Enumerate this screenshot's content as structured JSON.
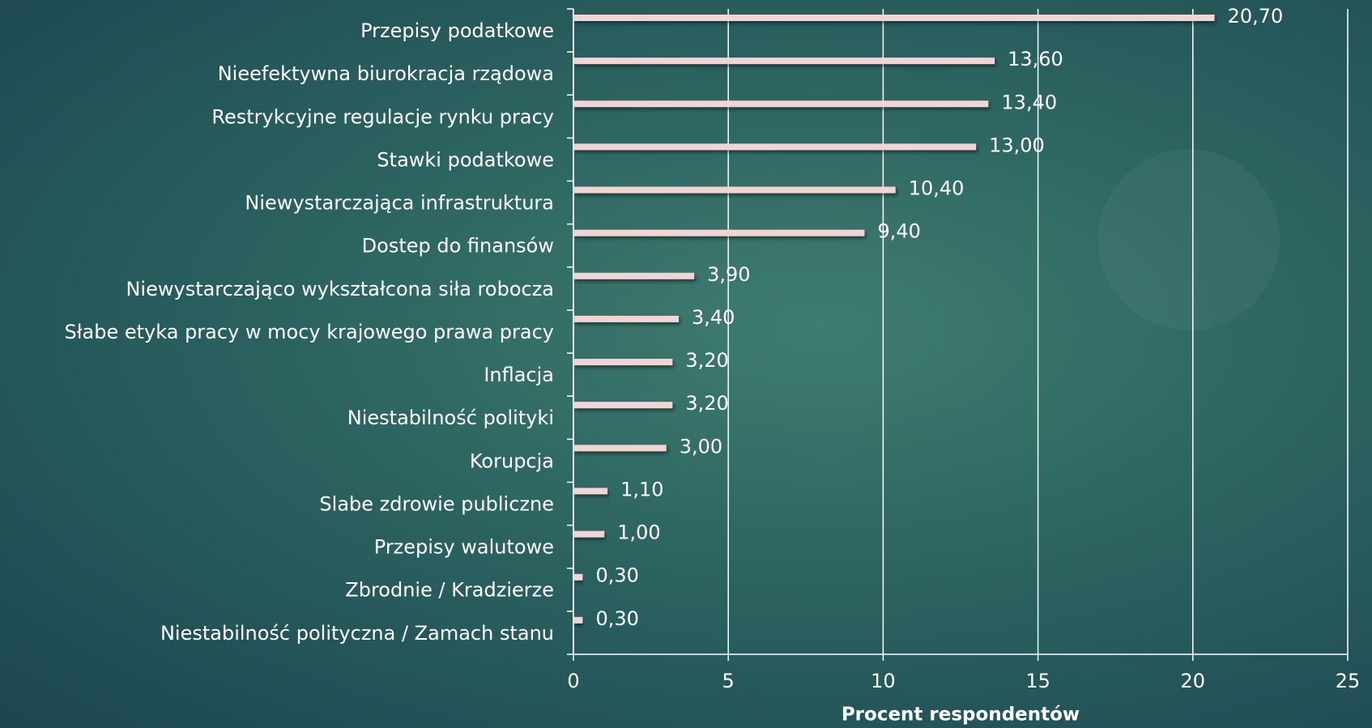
{
  "chart_data": {
    "type": "bar",
    "orientation": "horizontal",
    "categories": [
      "Przepisy podatkowe",
      "Nieefektywna biurokracja rządowa",
      "Restrykcyjne regulacje rynku pracy",
      "Stawki podatkowe",
      "Niewystarczająca infrastruktura",
      "Dostep do finansów",
      "Niewystarczająco wykształcona siła robocza",
      "Słabe etyka pracy w mocy krajowego prawa pracy",
      "Inflacja",
      "Niestabilność polityki",
      "Korupcja",
      "Slabe zdrowie publiczne",
      "Przepisy walutowe",
      "Zbrodnie / Kradzierze",
      "Niestabilność polityczna / Zamach stanu"
    ],
    "values": [
      20.7,
      13.6,
      13.4,
      13.0,
      10.4,
      9.4,
      3.9,
      3.4,
      3.2,
      3.2,
      3.0,
      1.1,
      1.0,
      0.3,
      0.3
    ],
    "value_labels": [
      "20,70",
      "13,60",
      "13,40",
      "13,00",
      "10,40",
      "9,40",
      "3,90",
      "3,40",
      "3,20",
      "3,20",
      "3,00",
      "1,10",
      "1,00",
      "0,30",
      "0,30"
    ],
    "color": "#f2d4d4",
    "xlabel": "Procent respondentów",
    "xlim": [
      0,
      25
    ],
    "xticks": [
      0,
      5,
      10,
      15,
      20,
      25
    ],
    "grid": true
  }
}
